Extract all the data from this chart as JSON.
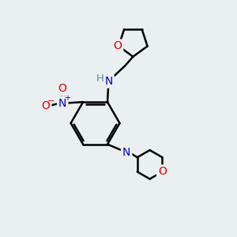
{
  "background_color": "#eaeff1",
  "bond_color": "#000000",
  "bond_width": 1.8,
  "atom_colors": {
    "O": "#dd0000",
    "N": "#0000cc",
    "N_plus": "#0000cc",
    "O_minus": "#dd0000",
    "H": "#4a9090",
    "C": "#000000"
  },
  "figsize": [
    3.0,
    3.0
  ],
  "dpi": 100
}
